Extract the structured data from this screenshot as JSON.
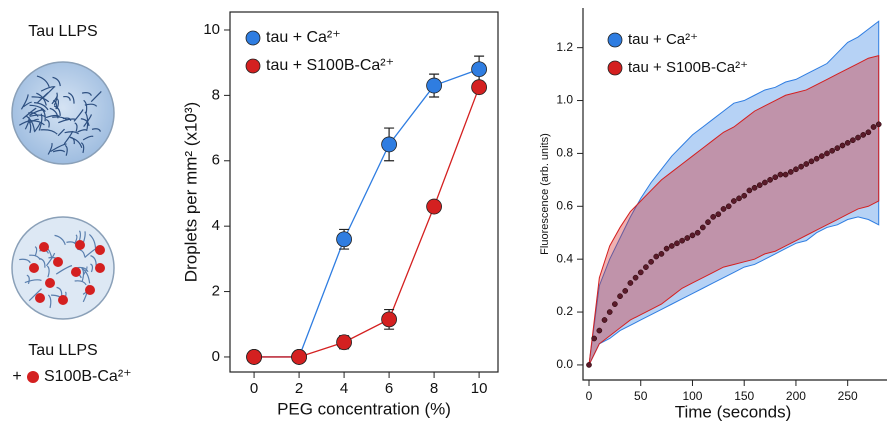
{
  "illustration": {
    "top_label": "Tau LLPS",
    "bottom_label": "Tau LLPS",
    "bottom_prefix": "+",
    "bottom_suffix": "S100B-Ca²⁺"
  },
  "chart_data": [
    {
      "type": "errorbar-line",
      "xlabel": "PEG concentration (%)",
      "ylabel": "Droplets per mm² (x10³)",
      "x": [
        0,
        2,
        4,
        6,
        8,
        10
      ],
      "series": [
        {
          "name": "tau + Ca²⁺",
          "color": "#2f7de1",
          "values": [
            0,
            0,
            3.6,
            6.5,
            8.3,
            8.8
          ],
          "errors": [
            0,
            0,
            0.3,
            0.5,
            0.35,
            0.4
          ]
        },
        {
          "name": "tau + S100B-Ca²⁺",
          "color": "#d42020",
          "values": [
            0,
            0,
            0.45,
            1.15,
            4.6,
            8.25
          ],
          "errors": [
            0,
            0,
            0.2,
            0.3,
            0.1,
            0.15
          ]
        }
      ],
      "xlim": [
        -1.07,
        10.84
      ],
      "ylim": [
        -0.46,
        10.55
      ],
      "xticks": [
        0,
        2,
        4,
        6,
        8,
        10
      ],
      "yticks": [
        0,
        2,
        4,
        6,
        8,
        10
      ]
    },
    {
      "type": "band-scatter",
      "xlabel": "Time (seconds)",
      "ylabel": "Fluorescence (arb. units)",
      "x": [
        0,
        10,
        20,
        30,
        40,
        50,
        60,
        70,
        80,
        90,
        100,
        110,
        120,
        130,
        140,
        150,
        160,
        170,
        180,
        190,
        200,
        210,
        220,
        230,
        240,
        250,
        260,
        270,
        280
      ],
      "series": [
        {
          "name": "tau + Ca²⁺",
          "color": "#2f7de1",
          "upper": [
            0,
            0.3,
            0.4,
            0.48,
            0.56,
            0.63,
            0.69,
            0.74,
            0.79,
            0.83,
            0.87,
            0.9,
            0.93,
            0.96,
            0.99,
            1.0,
            1.02,
            1.04,
            1.05,
            1.07,
            1.08,
            1.1,
            1.12,
            1.14,
            1.18,
            1.22,
            1.24,
            1.27,
            1.3
          ],
          "lower": [
            0,
            0.08,
            0.1,
            0.13,
            0.15,
            0.17,
            0.19,
            0.21,
            0.23,
            0.25,
            0.27,
            0.29,
            0.31,
            0.33,
            0.35,
            0.37,
            0.38,
            0.4,
            0.42,
            0.44,
            0.46,
            0.47,
            0.5,
            0.52,
            0.53,
            0.55,
            0.56,
            0.55,
            0.53
          ]
        },
        {
          "name": "tau + S100B-Ca²⁺",
          "color": "#d42020",
          "upper": [
            0,
            0.33,
            0.45,
            0.52,
            0.58,
            0.62,
            0.66,
            0.7,
            0.73,
            0.76,
            0.79,
            0.82,
            0.85,
            0.88,
            0.9,
            0.93,
            0.96,
            0.98,
            1.0,
            1.02,
            1.03,
            1.04,
            1.06,
            1.08,
            1.1,
            1.12,
            1.14,
            1.16,
            1.17
          ],
          "lower": [
            0,
            0.08,
            0.11,
            0.14,
            0.17,
            0.19,
            0.21,
            0.23,
            0.26,
            0.29,
            0.31,
            0.33,
            0.35,
            0.37,
            0.38,
            0.39,
            0.4,
            0.42,
            0.43,
            0.45,
            0.47,
            0.49,
            0.51,
            0.53,
            0.55,
            0.57,
            0.59,
            0.6,
            0.62
          ]
        }
      ],
      "points": {
        "color": "#5a1a2a",
        "x": [
          0,
          5,
          10,
          15,
          20,
          25,
          30,
          35,
          40,
          45,
          50,
          55,
          60,
          65,
          70,
          75,
          80,
          85,
          90,
          95,
          100,
          105,
          110,
          115,
          120,
          125,
          130,
          135,
          140,
          145,
          150,
          155,
          160,
          165,
          170,
          175,
          180,
          185,
          190,
          195,
          200,
          205,
          210,
          215,
          220,
          225,
          230,
          235,
          240,
          245,
          250,
          255,
          260,
          265,
          270,
          275,
          280
        ],
        "values": [
          0.0,
          0.1,
          0.13,
          0.17,
          0.2,
          0.23,
          0.26,
          0.28,
          0.31,
          0.33,
          0.35,
          0.37,
          0.39,
          0.41,
          0.42,
          0.44,
          0.45,
          0.46,
          0.47,
          0.48,
          0.49,
          0.5,
          0.52,
          0.54,
          0.56,
          0.57,
          0.59,
          0.6,
          0.62,
          0.63,
          0.64,
          0.66,
          0.67,
          0.68,
          0.69,
          0.7,
          0.71,
          0.72,
          0.72,
          0.73,
          0.74,
          0.75,
          0.76,
          0.77,
          0.78,
          0.79,
          0.8,
          0.81,
          0.82,
          0.83,
          0.84,
          0.85,
          0.86,
          0.87,
          0.88,
          0.9,
          0.91
        ]
      },
      "xlim": [
        -5.8,
        288
      ],
      "ylim": [
        -0.057,
        1.35
      ],
      "xticks": [
        0,
        50,
        100,
        150,
        200,
        250
      ],
      "yticks": [
        {
          "value": 0,
          "label": "0.0"
        },
        0.2,
        0.4,
        0.6,
        0.8,
        {
          "value": 1,
          "label": "1.0"
        },
        1.2
      ]
    }
  ]
}
